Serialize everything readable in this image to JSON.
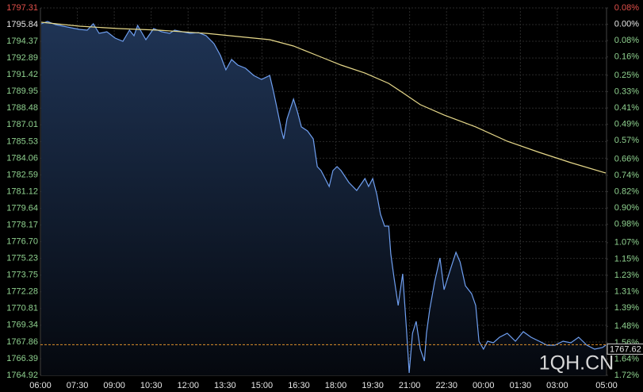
{
  "chart_data": {
    "type": "line",
    "watermark": "1QH.CN",
    "grid": true,
    "xlim": [
      0,
      1380
    ],
    "xticks": [
      {
        "value": 0,
        "label": "06:00"
      },
      {
        "value": 90,
        "label": "07:30"
      },
      {
        "value": 180,
        "label": "09:00"
      },
      {
        "value": 270,
        "label": "10:30"
      },
      {
        "value": 360,
        "label": "12:00"
      },
      {
        "value": 450,
        "label": "13:30"
      },
      {
        "value": 540,
        "label": "15:00"
      },
      {
        "value": 630,
        "label": "16:30"
      },
      {
        "value": 720,
        "label": "18:00"
      },
      {
        "value": 810,
        "label": "19:30"
      },
      {
        "value": 900,
        "label": "21:00"
      },
      {
        "value": 990,
        "label": "22:30"
      },
      {
        "value": 1080,
        "label": "00:00"
      },
      {
        "value": 1170,
        "label": "01:30"
      },
      {
        "value": 1260,
        "label": "03:00"
      },
      {
        "value": 1380,
        "label": "05:00"
      }
    ],
    "ylim": [
      1764.92,
      1797.31
    ],
    "yticks": [
      1797.31,
      1795.84,
      1794.37,
      1792.89,
      1791.42,
      1789.95,
      1788.48,
      1787.01,
      1785.53,
      1784.06,
      1782.59,
      1781.12,
      1779.64,
      1778.17,
      {
        "value": 1776.7,
        "label": "1776.70"
      },
      1775.23,
      1773.75,
      1772.28,
      1770.81,
      1769.34,
      1767.86,
      1766.39,
      1764.92
    ],
    "y2lim": [
      -1.72,
      0.08
    ],
    "y2ticks": [
      {
        "value": 0.08,
        "label": "0.08%"
      },
      {
        "value": 0,
        "label": "0.00%"
      },
      {
        "value": -0.08,
        "label": "0.08%"
      },
      {
        "value": -0.16,
        "label": "0.16%"
      },
      {
        "value": -0.25,
        "label": "0.25%"
      },
      {
        "value": -0.33,
        "label": "0.33%"
      },
      {
        "value": -0.41,
        "label": "0.41%"
      },
      {
        "value": -0.49,
        "label": "0.49%"
      },
      {
        "value": -0.57,
        "label": "0.57%"
      },
      {
        "value": -0.66,
        "label": "0.66%"
      },
      {
        "value": -0.74,
        "label": "0.74%"
      },
      {
        "value": -0.82,
        "label": "0.82%"
      },
      {
        "value": -0.9,
        "label": "0.90%"
      },
      {
        "value": -0.98,
        "label": "0.98%"
      },
      {
        "value": -1.07,
        "label": "1.07%"
      },
      {
        "value": -1.15,
        "label": "1.15%"
      },
      {
        "value": -1.23,
        "label": "1.23%"
      },
      {
        "value": -1.31,
        "label": "1.31%"
      },
      {
        "value": -1.39,
        "label": "1.39%"
      },
      {
        "value": -1.48,
        "label": "1.48%"
      },
      {
        "value": -1.56,
        "label": "1.56%"
      },
      {
        "value": -1.64,
        "label": "1.64%"
      },
      {
        "value": -1.72,
        "label": "1.72%"
      }
    ],
    "last_price": 1767.62,
    "last_price_color": "#e0902c",
    "up_color": "#e0504a",
    "flat_color": "#e6e6e6",
    "down_color": "#8fd18f",
    "series": [
      {
        "color": "#6f9ff0",
        "fill": true,
        "x": [
          2,
          17,
          37,
          56,
          75,
          95,
          114,
          129,
          143,
          162,
          182,
          201,
          217,
          228,
          237,
          257,
          276,
          296,
          315,
          327,
          346,
          365,
          385,
          404,
          423,
          439,
          452,
          466,
          481,
          500,
          520,
          539,
          559,
          568,
          578,
          588,
          593,
          601,
          617,
          626,
          636,
          651,
          665,
          675,
          684,
          694,
          704,
          713,
          723,
          733,
          752,
          771,
          791,
          800,
          810,
          820,
          829,
          839,
          849,
          854,
          862,
          872,
          883,
          893,
          899,
          907,
          916,
          926,
          936,
          941,
          949,
          961,
          974,
          984,
          999,
          1013,
          1023,
          1036,
          1051,
          1061,
          1069,
          1080,
          1090,
          1104,
          1119,
          1138,
          1158,
          1177,
          1196,
          1216,
          1235,
          1254,
          1274,
          1293,
          1312,
          1332,
          1351,
          1370,
          1378
        ],
        "values": [
          1795.91,
          1796.12,
          1795.84,
          1795.7,
          1795.56,
          1795.42,
          1795.35,
          1795.91,
          1795.07,
          1795.21,
          1794.65,
          1794.37,
          1795.35,
          1794.86,
          1795.77,
          1794.51,
          1795.49,
          1795.21,
          1795.07,
          1795.35,
          1795.21,
          1795.07,
          1795.14,
          1794.86,
          1794.16,
          1793.11,
          1791.85,
          1792.76,
          1792.27,
          1791.99,
          1791.36,
          1791.01,
          1791.36,
          1789.96,
          1788.22,
          1786.47,
          1785.77,
          1787.52,
          1789.27,
          1788.22,
          1786.82,
          1786.47,
          1785.77,
          1783.32,
          1782.97,
          1782.27,
          1781.57,
          1782.97,
          1783.32,
          1782.97,
          1781.92,
          1781.22,
          1782.27,
          1781.57,
          1782.27,
          1780.87,
          1779.12,
          1778.07,
          1778.07,
          1775.62,
          1773.52,
          1771.08,
          1773.87,
          1768.63,
          1765.13,
          1768.63,
          1769.68,
          1767.23,
          1766.18,
          1768.63,
          1770.73,
          1773.17,
          1775.27,
          1772.47,
          1774.22,
          1775.76,
          1774.92,
          1772.82,
          1772.12,
          1771.08,
          1767.93,
          1767.23,
          1767.93,
          1767.79,
          1768.28,
          1768.63,
          1767.93,
          1768.77,
          1768.28,
          1767.93,
          1767.58,
          1767.58,
          1767.93,
          1767.79,
          1768.28,
          1767.58,
          1767.23,
          1767.37,
          1767.58
        ]
      },
      {
        "color": "#e6d88a",
        "fill": false,
        "x": [
          2,
          95,
          191,
          288,
          404,
          481,
          559,
          617,
          675,
          733,
          791,
          849,
          887,
          926,
          984,
          1061,
          1138,
          1216,
          1293,
          1378
        ],
        "values": [
          1796.05,
          1795.7,
          1795.49,
          1795.35,
          1795.07,
          1794.79,
          1794.51,
          1793.95,
          1793.11,
          1792.27,
          1791.57,
          1790.66,
          1789.75,
          1788.78,
          1787.87,
          1786.82,
          1785.56,
          1784.58,
          1783.67,
          1782.76
        ]
      }
    ]
  }
}
